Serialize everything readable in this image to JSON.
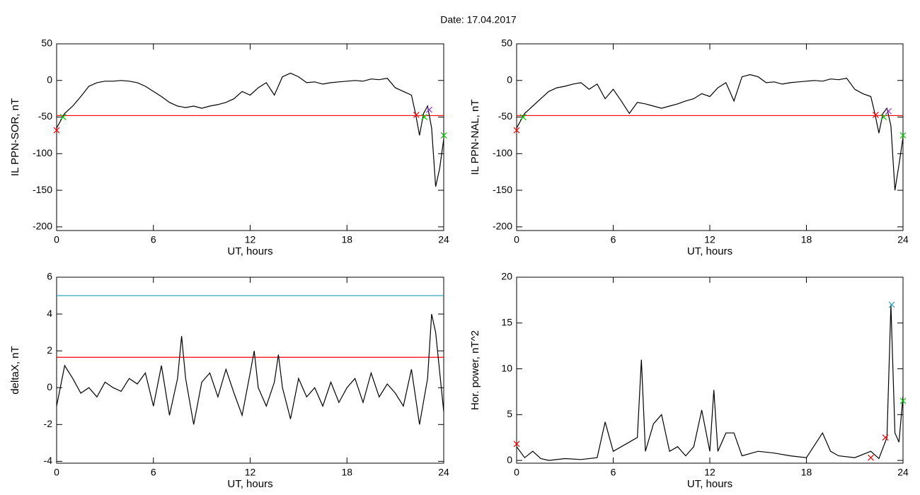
{
  "title": "Date:  17.04.2017",
  "chart_data": [
    {
      "type": "line",
      "ylabel": "IL PPN-SOR, nT",
      "xlabel": "UT, hours",
      "xlim": [
        0,
        24
      ],
      "xticks": [
        0,
        6,
        12,
        18,
        24
      ],
      "ylim": [
        -205,
        50
      ],
      "yticks": [
        50,
        0,
        -50,
        -100,
        -150,
        -200
      ],
      "x": [
        0,
        0.25,
        0.5,
        0.75,
        1,
        1.5,
        2,
        2.5,
        3,
        3.5,
        4,
        4.5,
        5,
        5.5,
        6,
        6.5,
        7,
        7.5,
        8,
        8.5,
        9,
        9.5,
        10,
        10.5,
        11,
        11.5,
        12,
        12.5,
        13,
        13.5,
        14,
        14.5,
        15,
        15.5,
        16,
        16.5,
        17,
        17.5,
        18,
        18.5,
        19,
        19.5,
        20,
        20.5,
        21,
        21.5,
        22,
        22.25,
        22.5,
        22.75,
        23,
        23.25,
        23.5,
        23.75,
        24
      ],
      "series": [
        {
          "color": "#000000",
          "values": [
            -65,
            -55,
            -45,
            -40,
            -35,
            -22,
            -8,
            -3,
            -1,
            -1,
            0,
            -1,
            -3,
            -8,
            -15,
            -22,
            -30,
            -35,
            -37,
            -35,
            -38,
            -35,
            -33,
            -30,
            -25,
            -15,
            -20,
            -10,
            -3,
            -20,
            5,
            10,
            5,
            -3,
            -2,
            -5,
            -3,
            -2,
            -1,
            0,
            -1,
            2,
            1,
            3,
            -10,
            -15,
            -20,
            -45,
            -75,
            -45,
            -35,
            -65,
            -145,
            -120,
            -80
          ]
        }
      ],
      "hlines": [
        {
          "value": -48,
          "color": "#ff0000"
        }
      ],
      "markers": [
        {
          "x": 0,
          "y": -68,
          "color": "#ff0000"
        },
        {
          "x": 0.4,
          "y": -50,
          "color": "#00cc00"
        },
        {
          "x": 22.3,
          "y": -47,
          "color": "#ff0000"
        },
        {
          "x": 22.8,
          "y": -50,
          "color": "#00cc00"
        },
        {
          "x": 23.1,
          "y": -40,
          "color": "#9933cc"
        },
        {
          "x": 24,
          "y": -75,
          "color": "#00cc00"
        }
      ]
    },
    {
      "type": "line",
      "ylabel": "IL PPN-NAL, nT",
      "xlabel": "UT, hours",
      "xlim": [
        0,
        24
      ],
      "xticks": [
        0,
        6,
        12,
        18,
        24
      ],
      "ylim": [
        -205,
        50
      ],
      "yticks": [
        50,
        0,
        -50,
        -100,
        -150,
        -200
      ],
      "x": [
        0,
        0.25,
        0.5,
        0.75,
        1,
        1.5,
        2,
        2.5,
        3,
        3.5,
        4,
        4.5,
        5,
        5.5,
        6,
        6.5,
        7,
        7.5,
        8,
        8.5,
        9,
        9.5,
        10,
        10.5,
        11,
        11.5,
        12,
        12.5,
        13,
        13.5,
        14,
        14.5,
        15,
        15.5,
        16,
        16.5,
        17,
        17.5,
        18,
        18.5,
        19,
        19.5,
        20,
        20.5,
        21,
        21.5,
        22,
        22.25,
        22.5,
        22.75,
        23,
        23.25,
        23.5,
        23.75,
        24
      ],
      "series": [
        {
          "color": "#000000",
          "values": [
            -65,
            -55,
            -45,
            -40,
            -35,
            -25,
            -15,
            -10,
            -8,
            -5,
            -3,
            -12,
            -5,
            -25,
            -12,
            -28,
            -45,
            -30,
            -32,
            -35,
            -38,
            -35,
            -32,
            -28,
            -25,
            -18,
            -22,
            -10,
            -3,
            -28,
            5,
            8,
            5,
            -3,
            -2,
            -5,
            -3,
            -2,
            -1,
            0,
            -1,
            2,
            1,
            3,
            -12,
            -18,
            -22,
            -45,
            -72,
            -45,
            -38,
            -62,
            -150,
            -115,
            -78
          ]
        }
      ],
      "hlines": [
        {
          "value": -48,
          "color": "#ff0000"
        }
      ],
      "markers": [
        {
          "x": 0,
          "y": -68,
          "color": "#ff0000"
        },
        {
          "x": 0.4,
          "y": -50,
          "color": "#00cc00"
        },
        {
          "x": 22.3,
          "y": -47,
          "color": "#ff0000"
        },
        {
          "x": 22.8,
          "y": -50,
          "color": "#00cc00"
        },
        {
          "x": 23.1,
          "y": -42,
          "color": "#9933cc"
        },
        {
          "x": 24,
          "y": -75,
          "color": "#00cc00"
        }
      ]
    },
    {
      "type": "line",
      "ylabel": "deltaX, nT",
      "xlabel": "UT, hours",
      "xlim": [
        0,
        24
      ],
      "xticks": [
        0,
        6,
        12,
        18,
        24
      ],
      "ylim": [
        -4.1,
        6
      ],
      "yticks": [
        6,
        4,
        2,
        0,
        -2,
        -4
      ],
      "x": [
        0,
        0.5,
        1,
        1.5,
        2,
        2.5,
        3,
        3.5,
        4,
        4.5,
        5,
        5.5,
        6,
        6.5,
        7,
        7.5,
        7.75,
        8,
        8.5,
        9,
        9.5,
        10,
        10.5,
        11,
        11.5,
        12,
        12.25,
        12.5,
        13,
        13.5,
        13.75,
        14,
        14.5,
        15,
        15.5,
        16,
        16.5,
        17,
        17.5,
        18,
        18.5,
        19,
        19.5,
        20,
        20.5,
        21,
        21.5,
        22,
        22.5,
        23,
        23.25,
        23.5,
        24
      ],
      "series": [
        {
          "color": "#000000",
          "values": [
            -1,
            1.2,
            0.5,
            -0.3,
            0,
            -0.5,
            0.3,
            0,
            -0.2,
            0.5,
            0.2,
            0.8,
            -1,
            1.2,
            -1.5,
            0.5,
            2.8,
            0.5,
            -2,
            0.3,
            0.8,
            -0.5,
            1,
            -0.3,
            -1.5,
            0.8,
            2,
            0,
            -1,
            0.3,
            1.8,
            0,
            -1.7,
            0.5,
            -0.5,
            0,
            -1,
            0.3,
            -0.8,
            0,
            0.5,
            -0.8,
            0.8,
            -0.5,
            0.2,
            -0.3,
            -1,
            1,
            -2,
            0.5,
            4,
            3,
            -1.3
          ]
        }
      ],
      "hlines": [
        {
          "value": 5,
          "color": "#1f9bbf"
        },
        {
          "value": 1.65,
          "color": "#ff0000"
        }
      ],
      "markers": []
    },
    {
      "type": "line",
      "ylabel": "Hor. power, nT^2",
      "xlabel": "UT, hours",
      "xlim": [
        0,
        24
      ],
      "xticks": [
        0,
        6,
        12,
        18,
        24
      ],
      "ylim": [
        -0.3,
        20
      ],
      "yticks": [
        20,
        15,
        10,
        5,
        0
      ],
      "x": [
        0,
        0.5,
        1,
        1.5,
        2,
        3,
        4,
        5,
        5.5,
        6,
        7,
        7.5,
        7.75,
        8,
        8.5,
        9,
        9.5,
        10,
        10.5,
        11,
        11.5,
        12,
        12.25,
        12.5,
        13,
        13.5,
        14,
        15,
        16,
        17,
        18,
        19,
        19.5,
        20,
        21,
        22,
        22.5,
        23,
        23.25,
        23.5,
        23.75,
        24
      ],
      "series": [
        {
          "color": "#000000",
          "values": [
            1.5,
            0.3,
            1,
            0.2,
            0,
            0.2,
            0.1,
            0.3,
            4.2,
            1,
            2,
            2.5,
            11,
            1,
            4,
            5,
            1,
            1.5,
            0.5,
            1.5,
            5.5,
            1,
            7.7,
            1,
            3,
            3,
            0.5,
            1,
            0.8,
            0.5,
            0.3,
            3,
            1,
            0.5,
            0.3,
            1,
            0.2,
            2.5,
            17,
            3,
            2,
            7
          ]
        }
      ],
      "hlines": [],
      "markers": [
        {
          "x": 0,
          "y": 1.8,
          "color": "#ff0000"
        },
        {
          "x": 22,
          "y": 0.3,
          "color": "#ff0000"
        },
        {
          "x": 22.9,
          "y": 2.5,
          "color": "#ff0000"
        },
        {
          "x": 23.3,
          "y": 17,
          "color": "#1f9bbf"
        },
        {
          "x": 24,
          "y": 6.5,
          "color": "#00cc00"
        }
      ]
    }
  ]
}
